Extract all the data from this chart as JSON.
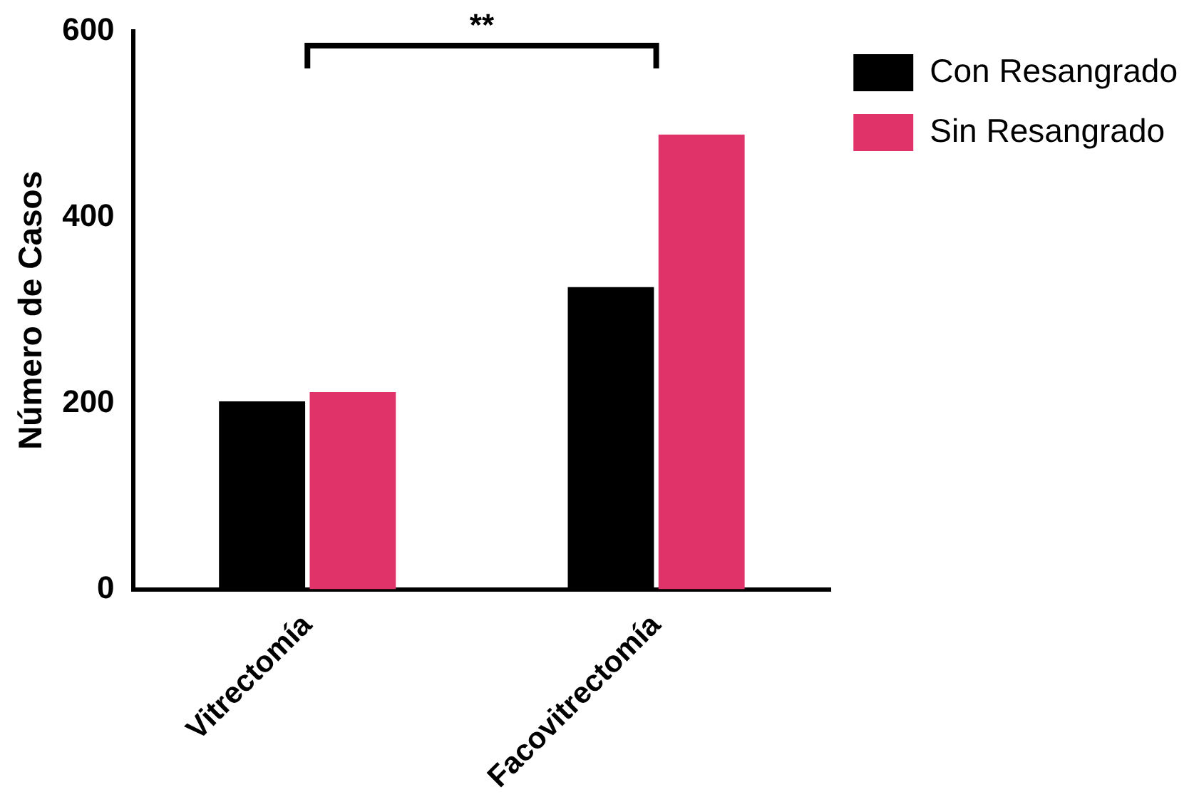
{
  "chart_data": {
    "type": "bar",
    "ylabel": "Número de Casos",
    "categories": [
      "Vitrectomía",
      "Facovitrectomía"
    ],
    "series": [
      {
        "name": "Con Resangrado",
        "color": "#000000",
        "values": [
          202,
          325
        ]
      },
      {
        "name": "Sin Resangrado",
        "color": "#e0336a",
        "values": [
          212,
          489
        ]
      }
    ],
    "ylim": [
      0,
      600
    ],
    "yticks": [
      0,
      200,
      400,
      600
    ],
    "grid": false,
    "legend": "top right",
    "annotations": [
      "**"
    ]
  }
}
